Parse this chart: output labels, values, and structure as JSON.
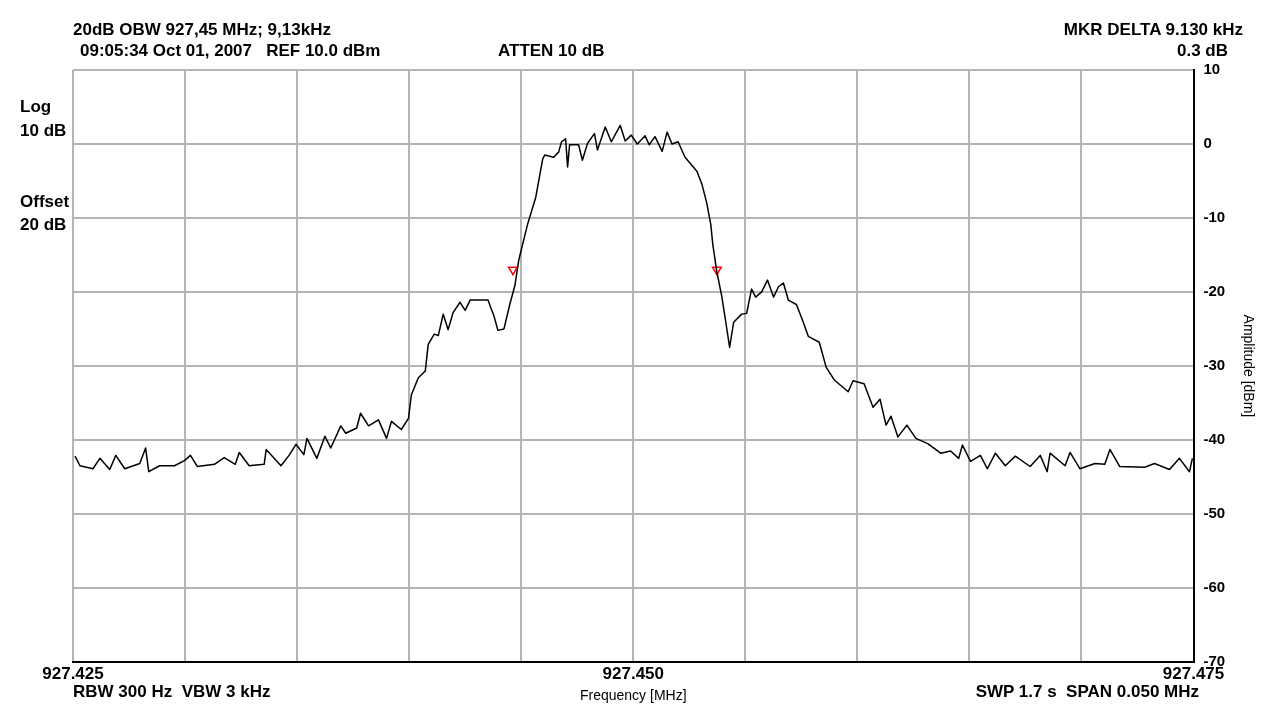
{
  "chart_data": {
    "type": "line",
    "title": "20dB OBW 927,45 MHz; 9,13kHz",
    "subtitle": "09:05:34 Oct 01, 2007   REF 10.0 dBm",
    "xlabel": "Frequency [MHz]",
    "ylabel": "Amplitude [dBm]",
    "annotations": [
      "ATTEN 10 dB",
      "MKR DELTA 9.130 kHz",
      "0.3 dB",
      "Log",
      "10 dB",
      "Offset",
      "20 dB",
      "RBW 300 Hz  VBW 3 kHz",
      "SWP 1.7 s  SPAN 0.050 MHz"
    ],
    "xlim": [
      927.425,
      927.475
    ],
    "xticks": [
      927.425,
      {
        "value": 927.43,
        "label": null
      },
      {
        "value": 927.435,
        "label": null
      },
      {
        "value": 927.44,
        "label": null
      },
      {
        "value": 927.445,
        "label": null
      },
      {
        "value": 927.45,
        "label": "927.450"
      },
      {
        "value": 927.455,
        "label": null
      },
      {
        "value": 927.46,
        "label": null
      },
      {
        "value": 927.465,
        "label": null
      },
      {
        "value": 927.47,
        "label": null
      },
      927.475
    ],
    "ylim": [
      -70,
      10
    ],
    "yticks": [
      10,
      0,
      -10,
      -20,
      -30,
      -40,
      -50,
      -60,
      -70
    ],
    "grid": true,
    "legend": false,
    "line_style": "solid",
    "series": [
      {
        "color": "#000000",
        "marker": "none",
        "x": [
          927.42509,
          927.42531,
          927.42589,
          927.4262,
          927.42664,
          927.42691,
          927.42731,
          927.42798,
          927.42824,
          927.42838,
          927.42886,
          927.42953,
          927.42997,
          927.43024,
          927.43055,
          927.43131,
          927.43175,
          927.43224,
          927.43242,
          927.43286,
          927.43353,
          927.43362,
          927.43428,
          927.43464,
          927.43495,
          927.4353,
          927.43544,
          927.43588,
          927.43624,
          927.4365,
          927.43695,
          927.43717,
          927.43766,
          927.43783,
          927.43819,
          927.43863,
          927.43899,
          927.43921,
          927.43965,
          927.43997,
          927.4401,
          927.44041,
          927.44072,
          927.44085,
          927.44112,
          927.4413,
          927.44152,
          927.44174,
          927.44196,
          927.44227,
          927.4425,
          927.44272,
          927.44352,
          927.44365,
          927.44378,
          927.44396,
          927.44423,
          927.44449,
          927.44472,
          927.44489,
          927.44529,
          927.44565,
          927.44596,
          927.44605,
          927.44645,
          927.44667,
          927.4468,
          927.44698,
          927.44707,
          927.44716,
          927.44756,
          927.44773,
          927.44796,
          927.44827,
          927.4484,
          927.44875,
          927.44902,
          927.44942,
          927.44964,
          927.44991,
          927.45018,
          927.45053,
          927.45071,
          927.45097,
          927.45129,
          927.45151,
          927.45173,
          927.452,
          927.45231,
          927.45284,
          927.45306,
          927.45328,
          927.45346,
          927.45355,
          927.45373,
          927.45395,
          927.45413,
          927.4543,
          927.45448,
          927.45484,
          927.45506,
          927.45528,
          927.45546,
          927.45573,
          927.45599,
          927.45626,
          927.45648,
          927.4567,
          927.45692,
          927.45728,
          927.45755,
          927.45781,
          927.4583,
          927.45861,
          927.45897,
          927.45959,
          927.45981,
          927.4603,
          927.4607,
          927.46101,
          927.46128,
          927.4615,
          927.46181,
          927.46221,
          927.46261,
          927.46314,
          927.46372,
          927.46416,
          927.46452,
          927.46469,
          927.46505,
          927.46549,
          927.4658,
          927.46616,
          927.4666,
          927.46705,
          927.46771,
          927.46816,
          927.46847,
          927.4686,
          927.46927,
          927.46949,
          927.46993,
          927.4706,
          927.47104,
          927.47127,
          927.47171,
          927.47282,
          927.47326,
          927.47393,
          927.47437,
          927.47482,
          927.47495
        ],
        "values": [
          -42.2,
          -43.5,
          -43.9,
          -42.5,
          -44.0,
          -42.1,
          -43.9,
          -43.2,
          -41.1,
          -44.3,
          -43.5,
          -43.5,
          -42.8,
          -42.1,
          -43.6,
          -43.3,
          -42.4,
          -43.3,
          -41.7,
          -43.5,
          -43.3,
          -41.3,
          -43.5,
          -42.1,
          -40.6,
          -42.0,
          -39.8,
          -42.5,
          -39.5,
          -41.1,
          -38.1,
          -39.1,
          -38.4,
          -36.4,
          -38.1,
          -37.3,
          -39.8,
          -37.5,
          -38.6,
          -37.1,
          -33.9,
          -31.6,
          -30.7,
          -27.1,
          -25.7,
          -25.9,
          -23.0,
          -25.1,
          -22.8,
          -21.4,
          -22.5,
          -21.1,
          -21.1,
          -22.2,
          -23.2,
          -25.2,
          -25.0,
          -21.7,
          -19.1,
          -15.7,
          -10.8,
          -7.2,
          -2.0,
          -1.5,
          -1.8,
          -1.1,
          0.3,
          0.7,
          -3.1,
          -0.1,
          -0.1,
          -2.2,
          0.1,
          1.4,
          -0.8,
          2.3,
          0.3,
          2.5,
          0.4,
          1.2,
          0.0,
          1.1,
          -0.1,
          1.0,
          -1.0,
          1.6,
          0.0,
          0.3,
          -1.8,
          -3.7,
          -5.4,
          -8.0,
          -10.9,
          -13.6,
          -17.3,
          -20.6,
          -24.1,
          -27.5,
          -24.1,
          -23.0,
          -22.9,
          -19.6,
          -20.7,
          -20.0,
          -18.4,
          -20.7,
          -19.3,
          -18.8,
          -21.1,
          -21.7,
          -23.8,
          -26.0,
          -26.8,
          -30.2,
          -31.9,
          -33.5,
          -32.0,
          -32.4,
          -35.6,
          -34.5,
          -38.0,
          -36.8,
          -39.6,
          -38.0,
          -39.8,
          -40.5,
          -41.8,
          -41.5,
          -42.5,
          -40.7,
          -42.9,
          -42.1,
          -43.9,
          -41.8,
          -43.5,
          -42.2,
          -43.6,
          -42.1,
          -44.3,
          -41.8,
          -43.5,
          -41.7,
          -43.9,
          -43.2,
          -43.3,
          -41.3,
          -43.6,
          -43.7,
          -43.2,
          -44.0,
          -42.5,
          -44.3,
          -42.5
        ]
      },
      {
        "type": "scatter",
        "color": "#ff0000",
        "marker": "triangle",
        "x": [
          927.44463,
          927.45373
        ],
        "values": [
          -17,
          -17
        ]
      }
    ]
  }
}
